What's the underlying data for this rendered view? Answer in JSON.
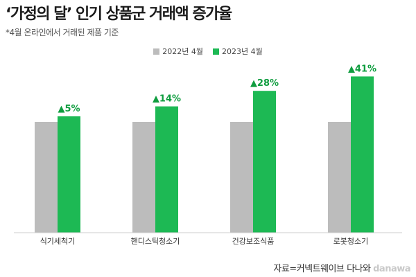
{
  "header": {
    "title": "‘가정의 달’ 인기 상품군 거래액 증가율",
    "subtitle": "*4월 온라인에서 거래된 제품 기준"
  },
  "legend": {
    "items": [
      {
        "label": "2022년 4월",
        "color": "#bcbcbc"
      },
      {
        "label": "2023년 4월",
        "color": "#1db954"
      }
    ]
  },
  "footer": {
    "source": "자료=커넥트웨이브 다나와",
    "watermark": "danawa"
  },
  "chart_data": {
    "type": "bar",
    "categories": [
      "식기세척기",
      "핸디스틱청소기",
      "건강보조식품",
      "로봇청소기"
    ],
    "series": [
      {
        "name": "2022년 4월",
        "values": [
          100,
          100,
          100,
          100
        ],
        "color": "#bcbcbc"
      },
      {
        "name": "2023년 4월",
        "values": [
          105,
          114,
          128,
          141
        ],
        "color": "#1db954"
      }
    ],
    "data_labels": [
      "▲5%",
      "▲14%",
      "▲28%",
      "▲41%"
    ],
    "label_color": "#0f9d3f",
    "axis_color": "#cccccc",
    "ylim": [
      0,
      150
    ],
    "grid": false
  }
}
